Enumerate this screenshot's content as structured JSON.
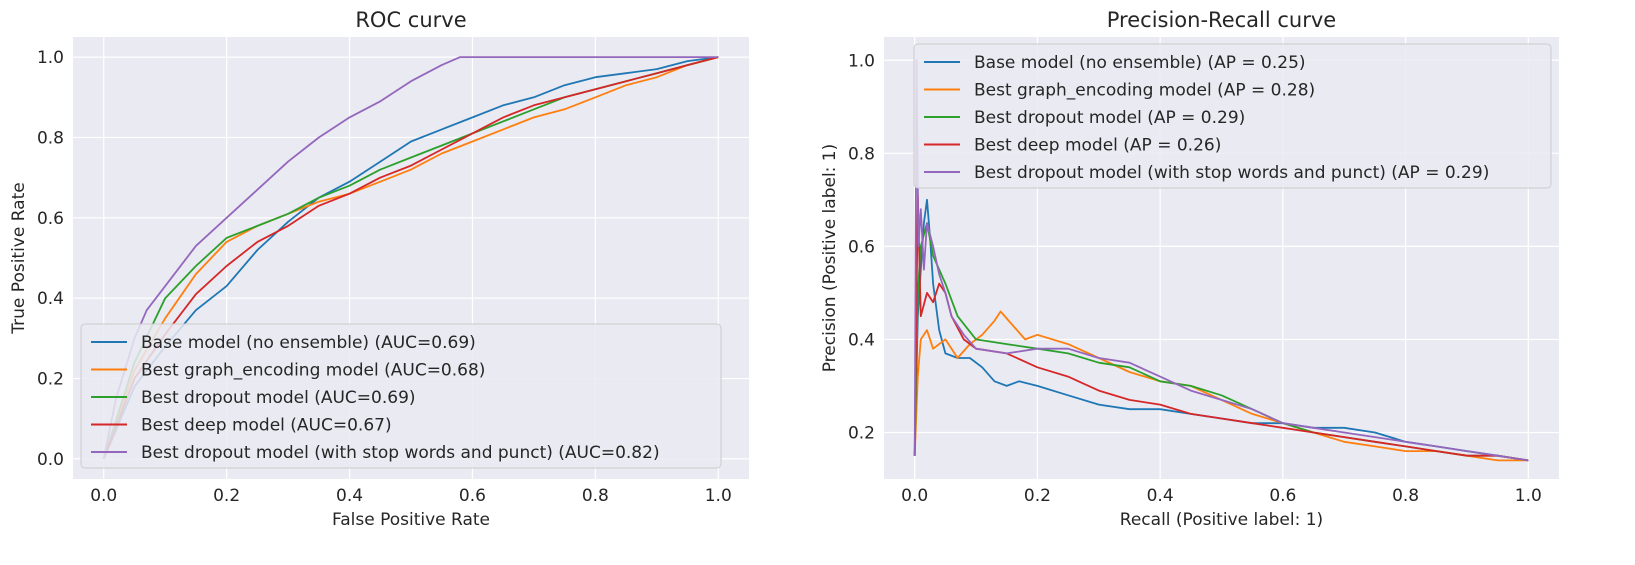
{
  "chart_data": [
    {
      "type": "line",
      "title": "ROC curve",
      "xlabel": "False Positive Rate",
      "ylabel": "True Positive Rate",
      "xlim": [
        -0.05,
        1.05
      ],
      "ylim": [
        -0.05,
        1.05
      ],
      "xticks": [
        "0.0",
        "0.2",
        "0.4",
        "0.6",
        "0.8",
        "1.0"
      ],
      "yticks": [
        "0.0",
        "0.2",
        "0.4",
        "0.6",
        "0.8",
        "1.0"
      ],
      "grid": true,
      "legend_position": "lower-right",
      "series": [
        {
          "name": "Base model (no ensemble) (AUC=0.69)",
          "color": "#1f77b4",
          "x": [
            0,
            0.05,
            0.1,
            0.15,
            0.2,
            0.25,
            0.3,
            0.35,
            0.4,
            0.45,
            0.5,
            0.55,
            0.6,
            0.65,
            0.7,
            0.75,
            0.8,
            0.85,
            0.9,
            0.95,
            1.0
          ],
          "y": [
            0,
            0.18,
            0.28,
            0.37,
            0.43,
            0.52,
            0.59,
            0.65,
            0.69,
            0.74,
            0.79,
            0.82,
            0.85,
            0.88,
            0.9,
            0.93,
            0.95,
            0.96,
            0.97,
            0.99,
            1.0
          ]
        },
        {
          "name": "Best graph_encoding model (AUC=0.68)",
          "color": "#ff7f0e",
          "x": [
            0,
            0.05,
            0.1,
            0.15,
            0.2,
            0.25,
            0.3,
            0.35,
            0.4,
            0.45,
            0.5,
            0.55,
            0.6,
            0.65,
            0.7,
            0.75,
            0.8,
            0.85,
            0.9,
            0.95,
            1.0
          ],
          "y": [
            0,
            0.22,
            0.35,
            0.46,
            0.54,
            0.58,
            0.61,
            0.64,
            0.66,
            0.69,
            0.72,
            0.76,
            0.79,
            0.82,
            0.85,
            0.87,
            0.9,
            0.93,
            0.95,
            0.98,
            1.0
          ]
        },
        {
          "name": "Best dropout model (AUC=0.69)",
          "color": "#2ca02c",
          "x": [
            0,
            0.05,
            0.1,
            0.15,
            0.2,
            0.25,
            0.3,
            0.35,
            0.4,
            0.45,
            0.5,
            0.55,
            0.6,
            0.65,
            0.7,
            0.75,
            0.8,
            0.85,
            0.9,
            0.95,
            1.0
          ],
          "y": [
            0,
            0.24,
            0.4,
            0.48,
            0.55,
            0.58,
            0.61,
            0.65,
            0.68,
            0.72,
            0.75,
            0.78,
            0.81,
            0.84,
            0.87,
            0.9,
            0.92,
            0.94,
            0.96,
            0.98,
            1.0
          ]
        },
        {
          "name": "Best deep model (AUC=0.67)",
          "color": "#d62728",
          "x": [
            0,
            0.05,
            0.1,
            0.15,
            0.2,
            0.25,
            0.3,
            0.35,
            0.4,
            0.45,
            0.5,
            0.55,
            0.6,
            0.65,
            0.7,
            0.75,
            0.8,
            0.85,
            0.9,
            0.95,
            1.0
          ],
          "y": [
            0,
            0.2,
            0.31,
            0.41,
            0.48,
            0.54,
            0.58,
            0.63,
            0.66,
            0.7,
            0.73,
            0.77,
            0.81,
            0.85,
            0.88,
            0.9,
            0.92,
            0.94,
            0.96,
            0.98,
            1.0
          ]
        },
        {
          "name": "Best dropout model (with stop words and punct) (AUC=0.82)",
          "color": "#9467bd",
          "x": [
            0,
            0.02,
            0.05,
            0.07,
            0.1,
            0.15,
            0.2,
            0.25,
            0.3,
            0.35,
            0.4,
            0.45,
            0.5,
            0.55,
            0.58,
            0.6,
            0.7,
            0.8,
            0.9,
            1.0
          ],
          "y": [
            0,
            0.15,
            0.3,
            0.37,
            0.43,
            0.53,
            0.6,
            0.67,
            0.74,
            0.8,
            0.85,
            0.89,
            0.94,
            0.98,
            1.0,
            1.0,
            1.0,
            1.0,
            1.0,
            1.0
          ]
        }
      ]
    },
    {
      "type": "line",
      "title": "Precision-Recall curve",
      "xlabel": "Recall (Positive label: 1)",
      "ylabel": "Precision (Positive label: 1)",
      "xlim": [
        -0.05,
        1.05
      ],
      "ylim": [
        0.1,
        1.05
      ],
      "xticks": [
        "0.0",
        "0.2",
        "0.4",
        "0.6",
        "0.8",
        "1.0"
      ],
      "yticks": [
        "0.2",
        "0.4",
        "0.6",
        "0.8",
        "1.0"
      ],
      "grid": true,
      "legend_position": "upper-right",
      "series": [
        {
          "name": "Base model (no ensemble) (AP = 0.25)",
          "color": "#1f77b4",
          "x": [
            0,
            0.005,
            0.01,
            0.015,
            0.02,
            0.025,
            0.03,
            0.04,
            0.05,
            0.07,
            0.09,
            0.11,
            0.13,
            0.15,
            0.17,
            0.2,
            0.25,
            0.3,
            0.35,
            0.4,
            0.45,
            0.5,
            0.55,
            0.6,
            0.65,
            0.7,
            0.75,
            0.8,
            0.85,
            0.9,
            0.95,
            1.0
          ],
          "y": [
            0.15,
            0.45,
            0.55,
            0.65,
            0.7,
            0.62,
            0.52,
            0.42,
            0.37,
            0.36,
            0.36,
            0.34,
            0.31,
            0.3,
            0.31,
            0.3,
            0.28,
            0.26,
            0.25,
            0.25,
            0.24,
            0.23,
            0.22,
            0.22,
            0.21,
            0.21,
            0.2,
            0.18,
            0.17,
            0.16,
            0.15,
            0.14
          ]
        },
        {
          "name": "Best graph_encoding model (AP = 0.28)",
          "color": "#ff7f0e",
          "x": [
            0,
            0.005,
            0.01,
            0.02,
            0.03,
            0.05,
            0.07,
            0.09,
            0.11,
            0.13,
            0.14,
            0.16,
            0.18,
            0.2,
            0.25,
            0.3,
            0.35,
            0.4,
            0.45,
            0.5,
            0.55,
            0.6,
            0.65,
            0.7,
            0.75,
            0.8,
            0.85,
            0.9,
            0.95,
            1.0
          ],
          "y": [
            0.15,
            0.32,
            0.4,
            0.42,
            0.38,
            0.4,
            0.36,
            0.39,
            0.41,
            0.44,
            0.46,
            0.43,
            0.4,
            0.41,
            0.39,
            0.36,
            0.33,
            0.31,
            0.3,
            0.27,
            0.24,
            0.22,
            0.2,
            0.18,
            0.17,
            0.16,
            0.16,
            0.15,
            0.14,
            0.14
          ]
        },
        {
          "name": "Best dropout model (AP = 0.29)",
          "color": "#2ca02c",
          "x": [
            0,
            0.005,
            0.01,
            0.02,
            0.03,
            0.05,
            0.07,
            0.1,
            0.15,
            0.2,
            0.25,
            0.3,
            0.35,
            0.4,
            0.45,
            0.5,
            0.55,
            0.6,
            0.65,
            0.7,
            0.75,
            0.8,
            0.85,
            0.9,
            0.95,
            1.0
          ],
          "y": [
            0.15,
            0.5,
            0.6,
            0.65,
            0.58,
            0.52,
            0.45,
            0.4,
            0.39,
            0.38,
            0.37,
            0.35,
            0.34,
            0.31,
            0.3,
            0.28,
            0.25,
            0.22,
            0.2,
            0.19,
            0.18,
            0.17,
            0.16,
            0.15,
            0.15,
            0.14
          ]
        },
        {
          "name": "Best deep model (AP = 0.26)",
          "color": "#d62728",
          "x": [
            0,
            0.005,
            0.01,
            0.02,
            0.03,
            0.04,
            0.05,
            0.06,
            0.08,
            0.1,
            0.15,
            0.2,
            0.25,
            0.3,
            0.35,
            0.4,
            0.45,
            0.5,
            0.55,
            0.6,
            0.65,
            0.7,
            0.75,
            0.8,
            0.85,
            0.9,
            0.95,
            1.0
          ],
          "y": [
            0.15,
            0.71,
            0.45,
            0.5,
            0.48,
            0.52,
            0.5,
            0.45,
            0.4,
            0.38,
            0.37,
            0.34,
            0.32,
            0.29,
            0.27,
            0.26,
            0.24,
            0.23,
            0.22,
            0.21,
            0.2,
            0.19,
            0.18,
            0.17,
            0.16,
            0.15,
            0.15,
            0.14
          ]
        },
        {
          "name": "Best dropout model (with stop words and punct) (AP = 0.29)",
          "color": "#9467bd",
          "x": [
            0,
            0.003,
            0.006,
            0.01,
            0.015,
            0.02,
            0.03,
            0.04,
            0.05,
            0.06,
            0.08,
            0.1,
            0.15,
            0.2,
            0.25,
            0.3,
            0.35,
            0.4,
            0.45,
            0.5,
            0.55,
            0.6,
            0.65,
            0.7,
            0.75,
            0.8,
            0.85,
            0.9,
            0.95,
            1.0
          ],
          "y": [
            0.15,
            1.0,
            0.6,
            0.68,
            0.55,
            0.65,
            0.6,
            0.54,
            0.5,
            0.45,
            0.41,
            0.38,
            0.37,
            0.38,
            0.38,
            0.36,
            0.35,
            0.32,
            0.29,
            0.27,
            0.25,
            0.22,
            0.21,
            0.2,
            0.19,
            0.18,
            0.17,
            0.16,
            0.15,
            0.14
          ]
        }
      ]
    }
  ]
}
